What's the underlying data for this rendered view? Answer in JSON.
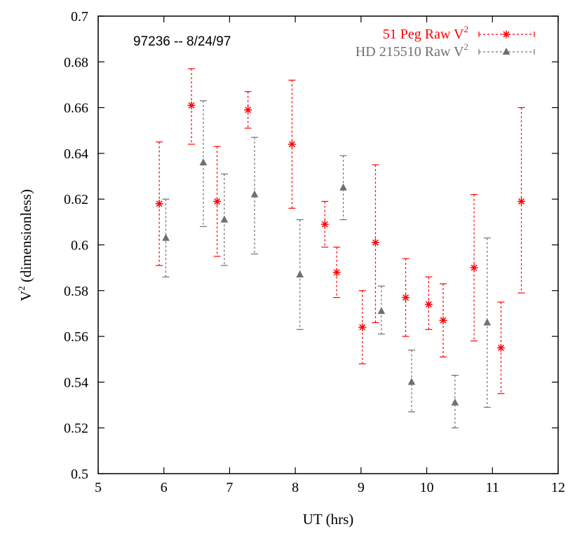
{
  "chart_data": {
    "type": "scatter",
    "annotation": "97236 -- 8/24/97",
    "xlabel": "UT (hrs)",
    "ylabel": {
      "base": "V",
      "sup": "2",
      "rest": " (dimensionless)"
    },
    "xlim": [
      5,
      12
    ],
    "ylim": [
      0.5,
      0.7
    ],
    "xticks": [
      "5",
      "6",
      "7",
      "8",
      "9",
      "10",
      "11",
      "12"
    ],
    "yticks": [
      "0.5",
      "0.52",
      "0.54",
      "0.56",
      "0.58",
      "0.6",
      "0.62",
      "0.64",
      "0.66",
      "0.68",
      "0.7"
    ],
    "grid": false,
    "legend_position": "top-right",
    "series": [
      {
        "name": "51 Peg Raw V",
        "name_sup": "2",
        "color": "#ff0000",
        "marker": "star",
        "points": [
          {
            "x": 5.93,
            "y": 0.618,
            "ylow": 0.591,
            "yhigh": 0.645
          },
          {
            "x": 6.42,
            "y": 0.661,
            "ylow": 0.644,
            "yhigh": 0.677
          },
          {
            "x": 6.81,
            "y": 0.619,
            "ylow": 0.595,
            "yhigh": 0.643
          },
          {
            "x": 7.28,
            "y": 0.659,
            "ylow": 0.651,
            "yhigh": 0.667
          },
          {
            "x": 7.95,
            "y": 0.644,
            "ylow": 0.616,
            "yhigh": 0.672
          },
          {
            "x": 8.45,
            "y": 0.609,
            "ylow": 0.599,
            "yhigh": 0.619
          },
          {
            "x": 8.63,
            "y": 0.588,
            "ylow": 0.577,
            "yhigh": 0.599
          },
          {
            "x": 9.02,
            "y": 0.564,
            "ylow": 0.548,
            "yhigh": 0.58
          },
          {
            "x": 9.22,
            "y": 0.601,
            "ylow": 0.566,
            "yhigh": 0.635
          },
          {
            "x": 9.68,
            "y": 0.577,
            "ylow": 0.56,
            "yhigh": 0.594
          },
          {
            "x": 10.03,
            "y": 0.574,
            "ylow": 0.563,
            "yhigh": 0.586
          },
          {
            "x": 10.25,
            "y": 0.567,
            "ylow": 0.551,
            "yhigh": 0.583
          },
          {
            "x": 10.72,
            "y": 0.59,
            "ylow": 0.558,
            "yhigh": 0.622
          },
          {
            "x": 11.13,
            "y": 0.555,
            "ylow": 0.535,
            "yhigh": 0.575
          },
          {
            "x": 11.44,
            "y": 0.619,
            "ylow": 0.579,
            "yhigh": 0.66
          }
        ]
      },
      {
        "name": "HD 215510 Raw V",
        "name_sup": "2",
        "color": "#707070",
        "marker": "triangle",
        "points": [
          {
            "x": 6.03,
            "y": 0.603,
            "ylow": 0.586,
            "yhigh": 0.62
          },
          {
            "x": 6.6,
            "y": 0.636,
            "ylow": 0.608,
            "yhigh": 0.663
          },
          {
            "x": 6.92,
            "y": 0.611,
            "ylow": 0.591,
            "yhigh": 0.631
          },
          {
            "x": 7.38,
            "y": 0.622,
            "ylow": 0.596,
            "yhigh": 0.647
          },
          {
            "x": 8.07,
            "y": 0.587,
            "ylow": 0.563,
            "yhigh": 0.611
          },
          {
            "x": 8.73,
            "y": 0.625,
            "ylow": 0.611,
            "yhigh": 0.639
          },
          {
            "x": 9.31,
            "y": 0.571,
            "ylow": 0.561,
            "yhigh": 0.582
          },
          {
            "x": 9.77,
            "y": 0.54,
            "ylow": 0.527,
            "yhigh": 0.554
          },
          {
            "x": 10.43,
            "y": 0.531,
            "ylow": 0.52,
            "yhigh": 0.543
          },
          {
            "x": 10.92,
            "y": 0.566,
            "ylow": 0.529,
            "yhigh": 0.603
          }
        ]
      }
    ]
  }
}
